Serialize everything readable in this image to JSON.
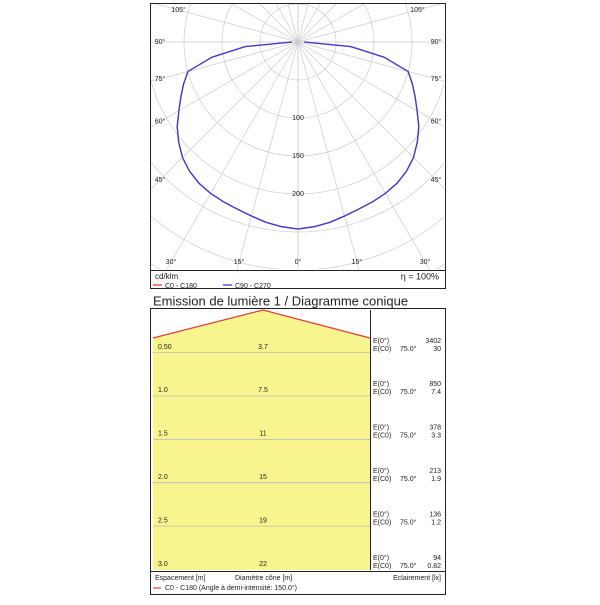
{
  "polar": {
    "radial_labels": [
      100,
      150,
      200
    ],
    "angle_labels": [
      {
        "value": 0,
        "label": "0°"
      },
      {
        "value": 15,
        "label": "15°"
      },
      {
        "value": 30,
        "label": "30°"
      },
      {
        "value": 45,
        "label": "45°"
      },
      {
        "value": 60,
        "label": "60°"
      },
      {
        "value": 75,
        "label": "75°"
      },
      {
        "value": 90,
        "label": "90°"
      },
      {
        "value": 105,
        "label": "105°"
      }
    ],
    "unit": "cd/klm",
    "efficiency": "η = 100%",
    "angles": [
      0,
      5,
      10,
      15,
      20,
      25,
      30,
      35,
      40,
      45,
      50,
      55,
      60,
      65,
      70,
      75,
      80,
      85,
      90
    ],
    "series": [
      {
        "name": "C0 - C180",
        "color": "#e23b3b",
        "values": [
          246,
          244,
          241,
          237,
          234,
          232,
          230,
          227,
          222,
          215,
          205,
          194,
          181,
          170,
          160,
          150,
          115,
          70,
          8
        ]
      },
      {
        "name": "C90 - C270",
        "color": "#3b3bd6",
        "values": [
          246,
          244,
          241,
          237,
          234,
          232,
          230,
          227,
          222,
          215,
          205,
          194,
          181,
          170,
          160,
          150,
          115,
          70,
          8
        ]
      }
    ]
  },
  "cone": {
    "title": "Emission de lumière 1 / Diagramme conique",
    "rows": [
      [
        "0.50",
        "3.7",
        "E(0°)",
        "E(C0)",
        "75.0°",
        "3402",
        "30"
      ],
      [
        "1.0",
        "7.5",
        "E(0°)",
        "E(C0)",
        "75.0°",
        "850",
        "7.4"
      ],
      [
        "1.5",
        "11",
        "E(0°)",
        "E(C0)",
        "75.0°",
        "378",
        "3.3"
      ],
      [
        "2.0",
        "15",
        "E(0°)",
        "E(C0)",
        "75.0°",
        "213",
        "1.9"
      ],
      [
        "2.5",
        "19",
        "E(0°)",
        "E(C0)",
        "75.0°",
        "136",
        "1.2"
      ],
      [
        "3.0",
        "22",
        "E(0°)",
        "E(C0)",
        "75.0°",
        "94",
        "0.82"
      ]
    ],
    "footer": {
      "spacing": "Espacement [m]",
      "diameter": "Diamètre cône [m]",
      "illuminance": "Eclairement [lx]",
      "legend": "C0 - C180 (Angle à demi-intensité: 150.0°)"
    }
  }
}
